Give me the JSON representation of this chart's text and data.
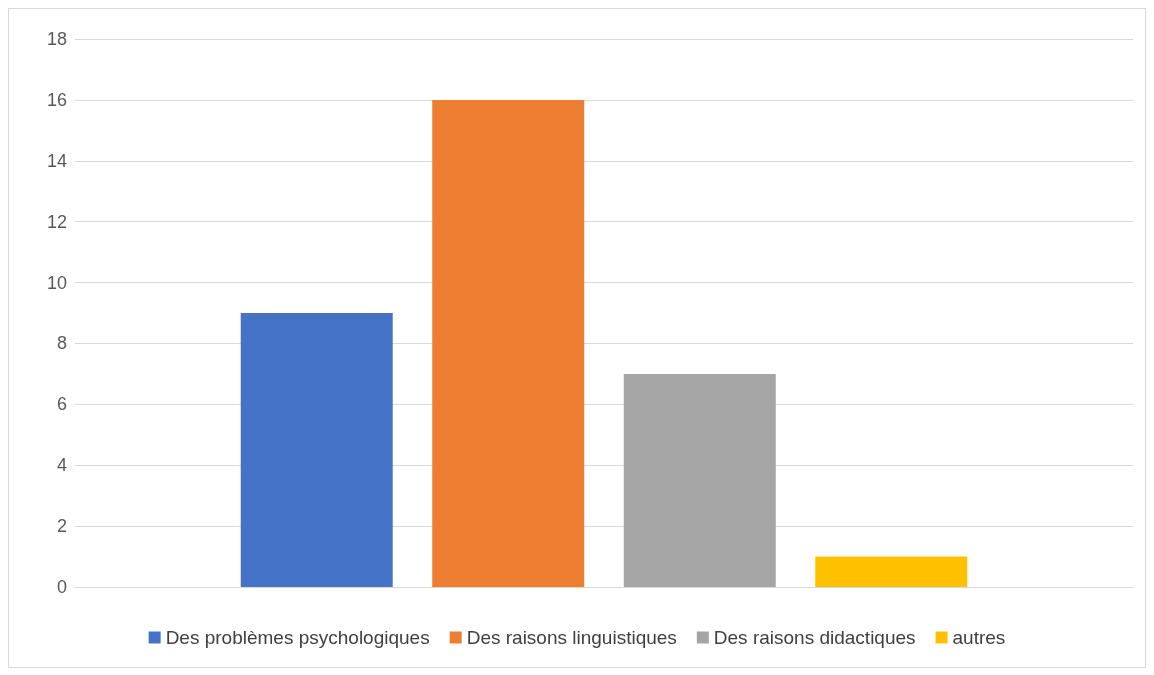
{
  "chart_data": {
    "type": "bar",
    "categories": [
      null
    ],
    "series": [
      {
        "name": "Des problèmes psychologiques",
        "color": "#4472c4",
        "values": [
          9
        ]
      },
      {
        "name": "Des raisons linguistiques",
        "color": "#ed7d31",
        "values": [
          16
        ]
      },
      {
        "name": "Des raisons didactiques",
        "color": "#a5a5a5",
        "values": [
          7
        ]
      },
      {
        "name": "autres",
        "color": "#ffc000",
        "values": [
          1
        ]
      }
    ],
    "ylim": [
      0,
      18
    ],
    "yticks": [
      0,
      2,
      4,
      6,
      8,
      10,
      12,
      14,
      16,
      18
    ],
    "grid": "y",
    "legend": "bottom"
  }
}
